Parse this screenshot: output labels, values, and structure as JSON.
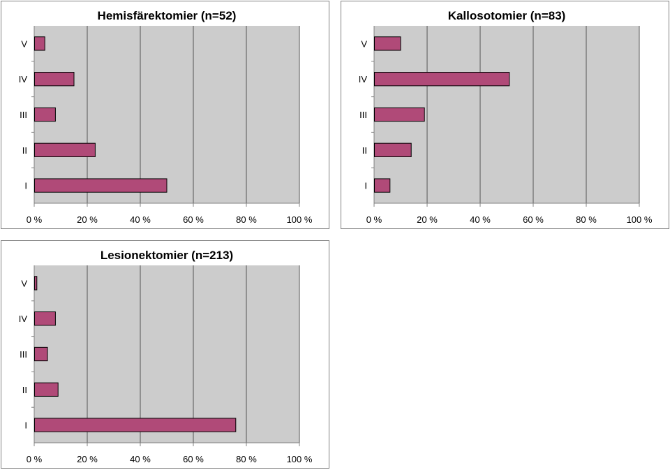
{
  "chart_data": [
    {
      "type": "bar",
      "orientation": "horizontal",
      "title": "Hemisfärektomier (n=52)",
      "categories": [
        "V",
        "IV",
        "III",
        "II",
        "I"
      ],
      "values": [
        4,
        15,
        8,
        23,
        50
      ],
      "xlim": [
        0,
        100
      ],
      "xticks": [
        "0 %",
        "20 %",
        "40 %",
        "60 %",
        "80 %",
        "100 %"
      ],
      "grid": true
    },
    {
      "type": "bar",
      "orientation": "horizontal",
      "title": "Kallosotomier (n=83)",
      "categories": [
        "V",
        "IV",
        "III",
        "II",
        "I"
      ],
      "values": [
        10,
        51,
        19,
        14,
        6
      ],
      "xlim": [
        0,
        100
      ],
      "xticks": [
        "0 %",
        "20 %",
        "40 %",
        "60 %",
        "80 %",
        "100 %"
      ],
      "grid": true
    },
    {
      "type": "bar",
      "orientation": "horizontal",
      "title": "Lesionektomier (n=213)",
      "categories": [
        "V",
        "IV",
        "III",
        "II",
        "I"
      ],
      "values": [
        1,
        8,
        5,
        9,
        76
      ],
      "xlim": [
        0,
        100
      ],
      "xticks": [
        "0 %",
        "20 %",
        "40 %",
        "60 %",
        "80 %",
        "100 %"
      ],
      "grid": true
    }
  ],
  "colors": {
    "bar_fill": "#b04a78",
    "bar_stroke": "#000000",
    "plot_background": "#cccccc",
    "gridline": "#555555"
  }
}
